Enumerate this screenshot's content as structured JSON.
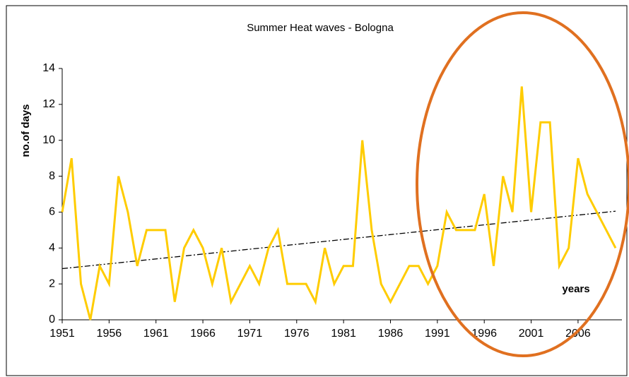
{
  "chart_data": {
    "type": "line",
    "title": "Summer Heat waves - Bologna",
    "y_label": "no.of days",
    "x_label": "years",
    "x": [
      1951,
      1952,
      1953,
      1954,
      1955,
      1956,
      1957,
      1958,
      1959,
      1960,
      1961,
      1962,
      1963,
      1964,
      1965,
      1966,
      1967,
      1968,
      1969,
      1970,
      1971,
      1972,
      1973,
      1974,
      1975,
      1976,
      1977,
      1978,
      1979,
      1980,
      1981,
      1982,
      1983,
      1984,
      1985,
      1986,
      1987,
      1988,
      1989,
      1990,
      1991,
      1992,
      1993,
      1994,
      1995,
      1996,
      1997,
      1998,
      1999,
      2000,
      2001,
      2002,
      2003,
      2004,
      2005,
      2006,
      2007,
      2008,
      2009,
      2010
    ],
    "values": [
      6,
      9,
      2,
      0,
      3,
      2,
      8,
      6,
      3,
      5,
      5,
      5,
      1,
      4,
      5,
      4,
      2,
      4,
      1,
      2,
      3,
      2,
      4,
      5,
      2,
      2,
      2,
      1,
      4,
      2,
      3,
      3,
      10,
      5,
      2,
      1,
      2,
      3,
      3,
      2,
      3,
      6,
      5,
      5,
      5,
      7,
      3,
      8,
      6,
      13,
      6,
      11,
      11,
      3,
      4,
      9,
      7,
      6,
      5,
      4
    ],
    "color": "#ffcc00",
    "trend": [
      2.85,
      6.05
    ],
    "trend_color": "#000000",
    "xlim": [
      1951,
      2010
    ],
    "xticks": [
      1951,
      1956,
      1961,
      1966,
      1971,
      1976,
      1981,
      1986,
      1991,
      1996,
      2001,
      2006
    ],
    "ylim": [
      0,
      14
    ],
    "yticks": [
      0,
      2,
      4,
      6,
      8,
      10,
      12,
      14
    ],
    "grid": false
  }
}
